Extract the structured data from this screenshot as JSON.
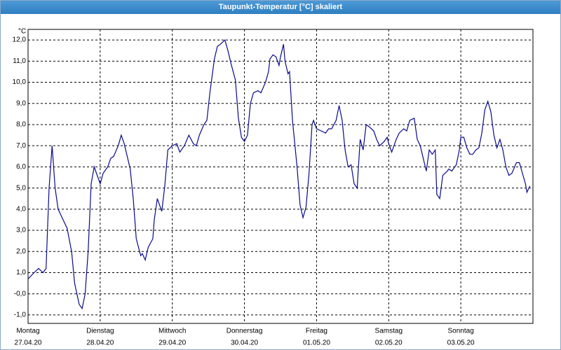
{
  "chart_data": {
    "type": "line",
    "title": "Taupunkt-Temperatur [°C] skaliert",
    "y_unit": "°C",
    "xlim": [
      0,
      168
    ],
    "ylim": [
      -1.4,
      12.5
    ],
    "xticks": [
      {
        "value": 0,
        "label": "Montag",
        "date": "27.04.20"
      },
      {
        "value": 24,
        "label": "Dienstag",
        "date": "28.04.20"
      },
      {
        "value": 48,
        "label": "Mittwoch",
        "date": "29.04.20"
      },
      {
        "value": 72,
        "label": "Donnerstag",
        "date": "30.04.20"
      },
      {
        "value": 96,
        "label": "Freitag",
        "date": "01.05.20"
      },
      {
        "value": 120,
        "label": "Samstag",
        "date": "02.05.20"
      },
      {
        "value": 144,
        "label": "Sonntag",
        "date": "03.05.20"
      }
    ],
    "yticks": [
      {
        "value": -1,
        "label": "-1,0"
      },
      {
        "value": 0,
        "label": "-0,0"
      },
      {
        "value": 1,
        "label": "1,0"
      },
      {
        "value": 2,
        "label": "2,0"
      },
      {
        "value": 3,
        "label": "3,0"
      },
      {
        "value": 4,
        "label": "4,0"
      },
      {
        "value": 5,
        "label": "5,0"
      },
      {
        "value": 6,
        "label": "6,0"
      },
      {
        "value": 7,
        "label": "7,0"
      },
      {
        "value": 8,
        "label": "8,0"
      },
      {
        "value": 9,
        "label": "9,0"
      },
      {
        "value": 10,
        "label": "10,0"
      },
      {
        "value": 11,
        "label": "11,0"
      },
      {
        "value": 12,
        "label": "12,0"
      }
    ],
    "grid": true,
    "series": [
      {
        "name": "Taupunkt",
        "color": "#0a0a8c",
        "x": [
          0,
          2,
          3.5,
          5,
          6,
          7,
          8,
          9,
          10,
          12,
          13,
          14.5,
          15.5,
          17,
          18,
          19,
          20,
          21,
          22,
          23,
          24,
          25,
          26.5,
          27.5,
          28.5,
          30,
          31,
          32,
          34,
          35,
          36,
          37.5,
          38,
          39,
          40,
          41.5,
          42,
          43,
          44.5,
          45.5,
          46.5,
          48,
          49.5,
          50.5,
          52,
          53.5,
          55,
          56,
          57,
          58.5,
          59.5,
          60.5,
          62,
          63,
          64,
          65.5,
          66.5,
          67.5,
          69,
          70,
          71,
          72,
          73,
          74,
          75,
          76.5,
          77.5,
          79,
          80,
          80.5,
          81.5,
          82.5,
          83.5,
          84,
          85,
          85.5,
          86.5,
          87,
          88,
          89.5,
          90.5,
          91.5,
          92.5,
          93.5,
          94.5,
          95,
          96,
          97.5,
          99,
          100,
          101,
          102.5,
          103.5,
          104.5,
          105.5,
          106.5,
          107.5,
          108.5,
          109.5,
          110.5,
          111.5,
          112.5,
          113.5,
          115,
          116,
          117,
          118.5,
          119.5,
          120,
          121,
          122.5,
          123.5,
          125,
          126,
          127,
          128.5,
          129.5,
          130.5,
          131.5,
          132.5,
          133.5,
          134.5,
          135.5,
          136,
          137,
          138,
          139.5,
          140,
          141,
          142.5,
          143.5,
          144,
          145,
          146,
          147,
          148,
          149,
          150,
          151,
          152,
          153,
          154,
          155,
          156,
          157,
          158,
          159,
          160,
          161,
          162.5,
          163.5,
          164.5,
          165.5,
          166,
          167
        ],
        "values": [
          0.7,
          1.0,
          1.2,
          1.0,
          1.2,
          5.0,
          7.0,
          5.0,
          4.0,
          3.4,
          3.1,
          2.0,
          0.5,
          -0.5,
          -0.7,
          0.0,
          2.0,
          5.2,
          6.0,
          5.6,
          5.2,
          5.7,
          6.0,
          6.4,
          6.5,
          7.0,
          7.5,
          7.1,
          5.9,
          4.5,
          2.6,
          1.8,
          1.9,
          1.6,
          2.2,
          2.6,
          3.5,
          4.5,
          3.9,
          5.1,
          6.8,
          7.0,
          7.1,
          6.7,
          7.0,
          7.5,
          7.1,
          7.0,
          7.5,
          8.0,
          8.2,
          9.5,
          11.1,
          11.7,
          11.8,
          12.0,
          11.5,
          10.9,
          10.1,
          8.3,
          7.4,
          7.2,
          7.5,
          9.0,
          9.5,
          9.6,
          9.5,
          10.0,
          10.5,
          11.1,
          11.3,
          11.2,
          10.8,
          11.2,
          11.8,
          11.0,
          10.4,
          10.5,
          8.2,
          6.0,
          4.2,
          3.6,
          4.1,
          5.7,
          8.0,
          8.2,
          7.8,
          7.7,
          7.6,
          7.8,
          7.8,
          8.2,
          8.9,
          8.2,
          6.8,
          6.0,
          6.1,
          5.2,
          5.0,
          7.3,
          6.8,
          8.0,
          7.9,
          7.7,
          7.3,
          7.0,
          7.2,
          7.4,
          7.1,
          6.7,
          7.3,
          7.6,
          7.8,
          7.7,
          8.2,
          8.3,
          7.3,
          7.0,
          6.4,
          5.8,
          6.8,
          6.6,
          6.8,
          4.7,
          4.5,
          5.6,
          5.8,
          5.9,
          5.8,
          6.1,
          6.8,
          7.4,
          7.4,
          6.9,
          6.6,
          6.6,
          6.8,
          6.9,
          7.6,
          8.7,
          9.1,
          8.6,
          7.5,
          6.9,
          7.3,
          6.8,
          6.0,
          5.6,
          5.7,
          6.2,
          6.2,
          5.7,
          5.2,
          4.8,
          5.1
        ]
      }
    ]
  }
}
